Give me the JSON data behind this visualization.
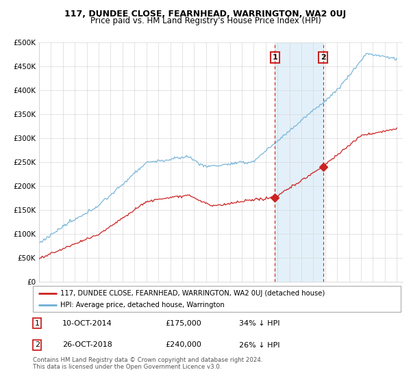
{
  "title": "117, DUNDEE CLOSE, FEARNHEAD, WARRINGTON, WA2 0UJ",
  "subtitle": "Price paid vs. HM Land Registry's House Price Index (HPI)",
  "ylim": [
    0,
    500000
  ],
  "yticks": [
    0,
    50000,
    100000,
    150000,
    200000,
    250000,
    300000,
    350000,
    400000,
    450000,
    500000
  ],
  "ytick_labels": [
    "£0",
    "£50K",
    "£100K",
    "£150K",
    "£200K",
    "£250K",
    "£300K",
    "£350K",
    "£400K",
    "£450K",
    "£500K"
  ],
  "xlim_start": 1995.0,
  "xlim_end": 2025.5,
  "hpi_color": "#6baed6",
  "price_color": "#cc2222",
  "transaction1_x": 2014.78,
  "transaction1_y": 175000,
  "transaction2_x": 2018.82,
  "transaction2_y": 240000,
  "transaction1_date": "10-OCT-2014",
  "transaction1_price": "£175,000",
  "transaction1_hpi": "34% ↓ HPI",
  "transaction2_date": "26-OCT-2018",
  "transaction2_price": "£240,000",
  "transaction2_hpi": "26% ↓ HPI",
  "legend_line1": "117, DUNDEE CLOSE, FEARNHEAD, WARRINGTON, WA2 0UJ (detached house)",
  "legend_line2": "HPI: Average price, detached house, Warrington",
  "footer": "Contains HM Land Registry data © Crown copyright and database right 2024.\nThis data is licensed under the Open Government Licence v3.0.",
  "title_fontsize": 9,
  "subtitle_fontsize": 8.5,
  "axis_fontsize": 7.5
}
